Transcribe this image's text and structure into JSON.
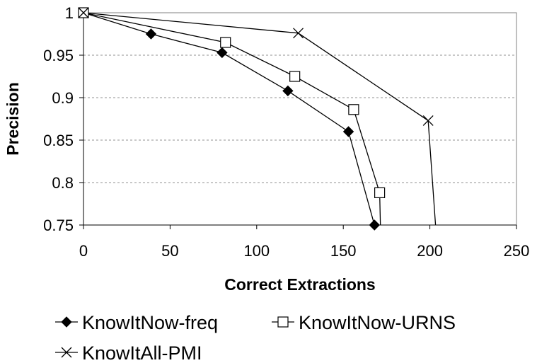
{
  "chart_data": {
    "type": "line",
    "title": "",
    "xlabel": "Correct Extractions",
    "ylabel": "Precision",
    "xlim": [
      0,
      250
    ],
    "ylim": [
      0.75,
      1
    ],
    "x_ticks": [
      "0",
      "50",
      "100",
      "150",
      "200",
      "250"
    ],
    "y_ticks": [
      "0.75",
      "0.8",
      "0.85",
      "0.9",
      "0.95",
      "1"
    ],
    "grid": "horizontal dashed",
    "legend_position": "bottom",
    "series": [
      {
        "name": "KnowItNow-freq",
        "marker": "diamond-filled",
        "color": "#000000",
        "x": [
          0,
          39,
          80,
          118,
          153,
          168,
          169
        ],
        "y": [
          1.0,
          0.975,
          0.953,
          0.908,
          0.86,
          0.75,
          0.7
        ]
      },
      {
        "name": "KnowItNow-URNS",
        "marker": "square-open",
        "color": "#000000",
        "x": [
          0,
          82,
          122,
          156,
          171,
          172
        ],
        "y": [
          1.0,
          0.965,
          0.925,
          0.886,
          0.788,
          0.7
        ]
      },
      {
        "name": "KnowItAll-PMI",
        "marker": "x",
        "color": "#000000",
        "x": [
          0,
          124,
          199,
          205
        ],
        "y": [
          1.0,
          0.976,
          0.873,
          0.7
        ]
      }
    ]
  }
}
